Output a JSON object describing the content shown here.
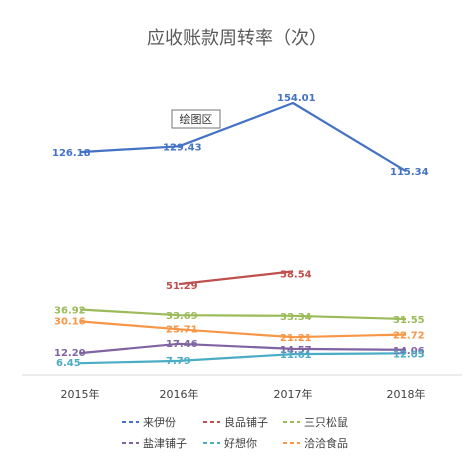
{
  "chart_data": {
    "type": "line",
    "title": "应收账款周转率（次）",
    "categories": [
      "2015年",
      "2016年",
      "2017年",
      "2018年"
    ],
    "series": [
      {
        "name": "来伊份",
        "color": "#4472C4",
        "values": [
          126.18,
          129.43,
          154.01,
          115.34
        ],
        "labels": [
          "126.18",
          "129.43",
          "154.01",
          "115.34"
        ]
      },
      {
        "name": "良品铺子",
        "color": "#C0504D",
        "values": [
          null,
          51.29,
          58.54,
          null
        ],
        "labels": [
          "",
          "51.29",
          "58.54",
          ""
        ]
      },
      {
        "name": "三只松鼠",
        "color": "#9BBB59",
        "values": [
          36.92,
          33.69,
          33.34,
          31.55
        ],
        "labels": [
          "36.92",
          "33.69",
          "33.34",
          "31.55"
        ]
      },
      {
        "name": "盐津铺子",
        "color": "#8064A2",
        "values": [
          12.2,
          17.46,
          14.57,
          14.06
        ],
        "labels": [
          "12.20",
          "17.46",
          "14.57",
          "14.06"
        ]
      },
      {
        "name": "好想你",
        "color": "#4BACC6",
        "values": [
          6.45,
          7.79,
          11.61,
          12.05
        ],
        "labels": [
          "6.45",
          "7.79",
          "11.61",
          "12.05"
        ]
      },
      {
        "name": "洽洽食品",
        "color": "#F79646",
        "values": [
          30.16,
          25.71,
          21.21,
          22.72
        ],
        "labels": [
          "30.16",
          "25.71",
          "21.21",
          "22.72"
        ]
      }
    ],
    "xlabel": "",
    "ylabel": "",
    "ylim": [
      0,
      170
    ],
    "grid": false,
    "legend_position": "bottom"
  },
  "plot_area_tag": "绘图区"
}
